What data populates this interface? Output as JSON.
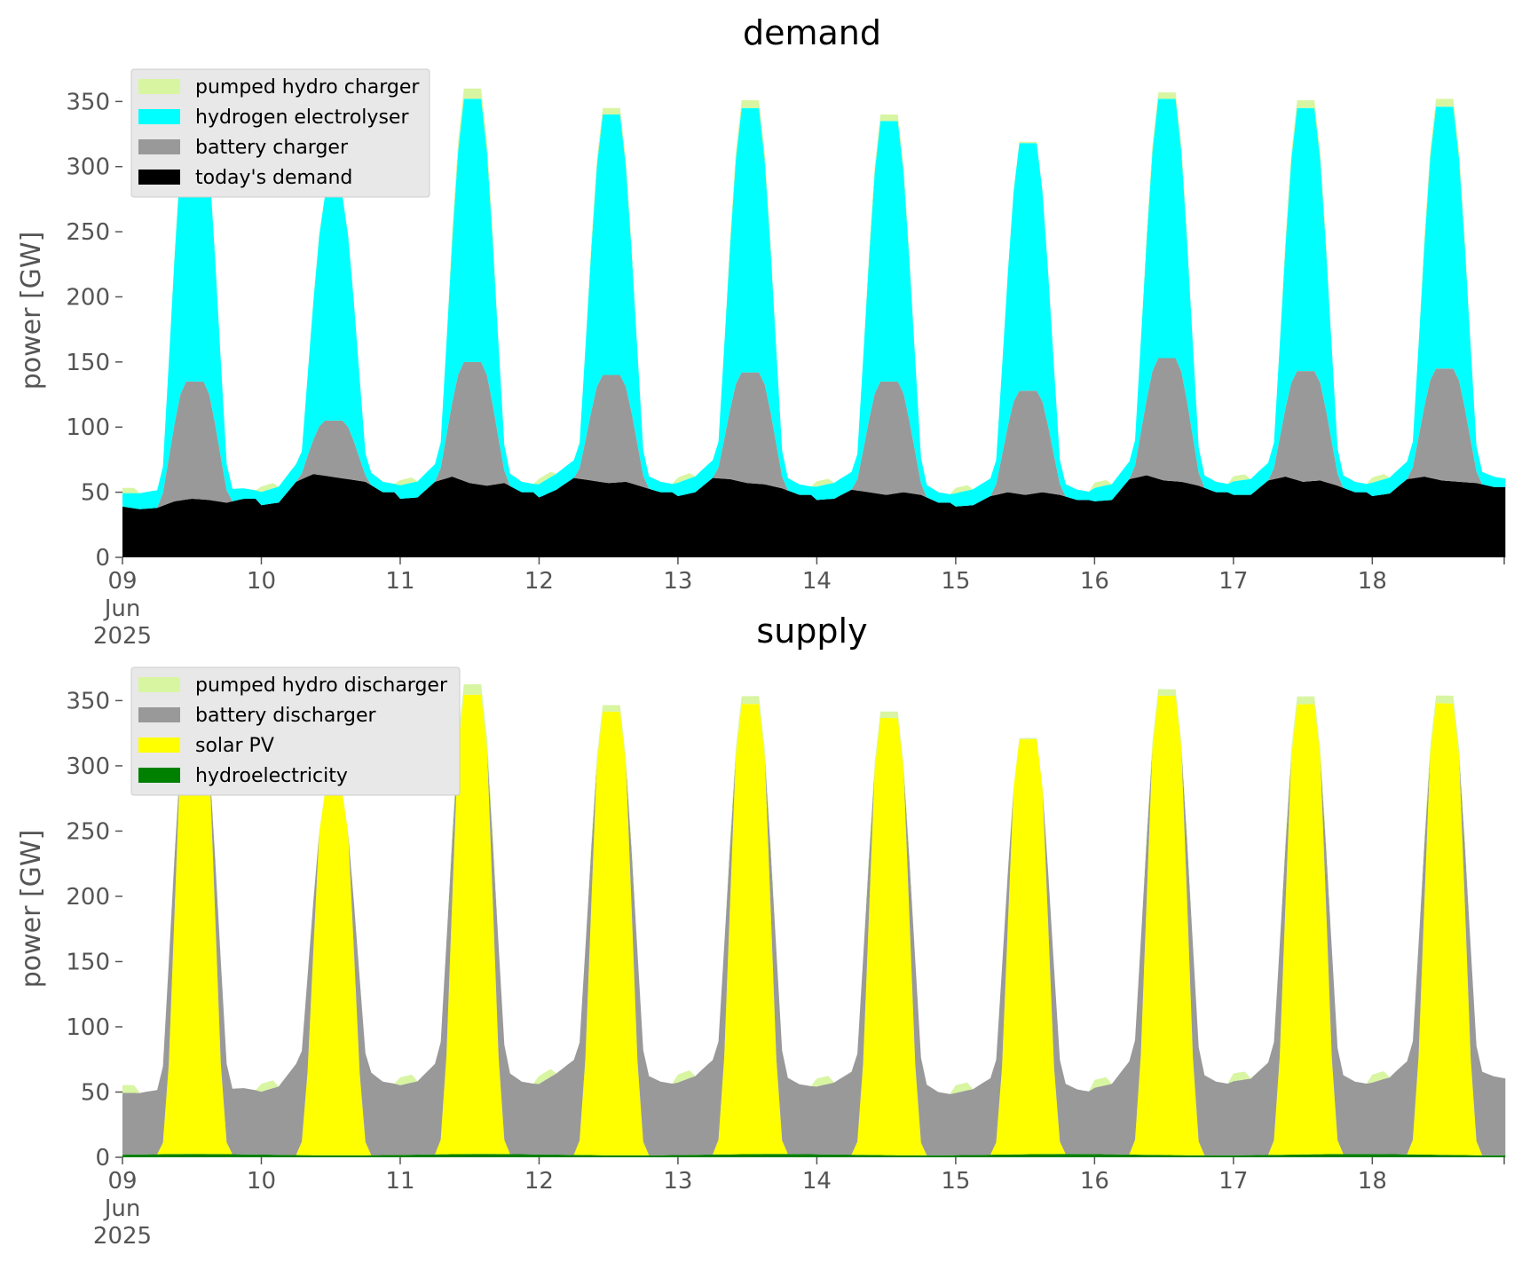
{
  "chart_data": [
    {
      "type": "area",
      "title": "demand",
      "ylabel": "power [GW]",
      "ylim": [
        0,
        370
      ],
      "yticks": [
        "0",
        "50",
        "100",
        "150",
        "200",
        "250",
        "300",
        "350"
      ],
      "xlim": [
        0,
        9.95
      ],
      "xticks": [
        {
          "v": 0,
          "lines": [
            "09",
            "Jun",
            "2025"
          ]
        },
        {
          "v": 1,
          "lines": [
            "10"
          ]
        },
        {
          "v": 2,
          "lines": [
            "11"
          ]
        },
        {
          "v": 3,
          "lines": [
            "12"
          ]
        },
        {
          "v": 4,
          "lines": [
            "13"
          ]
        },
        {
          "v": 5,
          "lines": [
            "14"
          ]
        },
        {
          "v": 6,
          "lines": [
            "15"
          ]
        },
        {
          "v": 7,
          "lines": [
            "16"
          ]
        },
        {
          "v": 8,
          "lines": [
            "17"
          ]
        },
        {
          "v": 9,
          "lines": [
            "18"
          ]
        }
      ],
      "x_note": "x in days starting 2025-06-09 00:00",
      "legend_position": "upper-left",
      "days": [
        {
          "base": [
            39,
            37,
            38,
            43,
            45,
            44,
            42,
            45
          ],
          "peakB": 135,
          "peakH": 343,
          "phc": 2,
          "hscale": 1.0
        },
        {
          "base": [
            40,
            42,
            58,
            64,
            62,
            60,
            58,
            50
          ],
          "peakB": 105,
          "peakH": 278,
          "phc": 1,
          "hscale": 0.83
        },
        {
          "base": [
            45,
            46,
            58,
            62,
            57,
            55,
            57,
            50
          ],
          "peakB": 150,
          "peakH": 352,
          "phc": 8,
          "hscale": 1.0
        },
        {
          "base": [
            46,
            52,
            61,
            59,
            57,
            58,
            54,
            50
          ],
          "peakB": 140,
          "peakH": 340,
          "phc": 5,
          "hscale": 1.0
        },
        {
          "base": [
            47,
            50,
            61,
            60,
            57,
            56,
            53,
            48
          ],
          "peakB": 142,
          "peakH": 345,
          "phc": 6,
          "hscale": 1.0
        },
        {
          "base": [
            44,
            45,
            52,
            50,
            48,
            50,
            48,
            42
          ],
          "peakB": 135,
          "peakH": 335,
          "phc": 5,
          "hscale": 1.0
        },
        {
          "base": [
            39,
            40,
            47,
            50,
            48,
            50,
            48,
            44
          ],
          "peakB": 128,
          "peakH": 318,
          "phc": 1,
          "hscale": 0.9
        },
        {
          "base": [
            43,
            44,
            60,
            63,
            59,
            58,
            55,
            50
          ],
          "peakB": 153,
          "peakH": 352,
          "phc": 5,
          "hscale": 1.0
        },
        {
          "base": [
            48,
            48,
            59,
            62,
            58,
            59,
            55,
            50
          ],
          "peakB": 143,
          "peakH": 345,
          "phc": 6,
          "hscale": 1.0
        },
        {
          "base": [
            47,
            49,
            60,
            62,
            59,
            58,
            57,
            54
          ],
          "peakB": 145,
          "peakH": 346,
          "phc": 6,
          "hscale": 1.0
        }
      ],
      "series": [
        {
          "name": "pumped hydro charger",
          "color": "#d8f5a2"
        },
        {
          "name": "hydrogen electrolyser",
          "color": "#00ffff"
        },
        {
          "name": "battery charger",
          "color": "#999999"
        },
        {
          "name": "today's demand",
          "color": "#000000"
        }
      ]
    },
    {
      "type": "area",
      "title": "supply",
      "ylabel": "power [GW]",
      "ylim": [
        0,
        370
      ],
      "yticks": [
        "0",
        "50",
        "100",
        "150",
        "200",
        "250",
        "300",
        "350"
      ],
      "xlim": [
        0,
        9.95
      ],
      "xticks": [
        {
          "v": 0,
          "lines": [
            "09",
            "Jun",
            "2025"
          ]
        },
        {
          "v": 1,
          "lines": [
            "10"
          ]
        },
        {
          "v": 2,
          "lines": [
            "11"
          ]
        },
        {
          "v": 3,
          "lines": [
            "12"
          ]
        },
        {
          "v": 4,
          "lines": [
            "13"
          ]
        },
        {
          "v": 5,
          "lines": [
            "14"
          ]
        },
        {
          "v": 6,
          "lines": [
            "15"
          ]
        },
        {
          "v": 7,
          "lines": [
            "16"
          ]
        },
        {
          "v": 8,
          "lines": [
            "17"
          ]
        },
        {
          "v": 9,
          "lines": [
            "18"
          ]
        }
      ],
      "legend_position": "upper-left",
      "series": [
        {
          "name": "pumped hydro discharger",
          "color": "#d8f5a2"
        },
        {
          "name": "battery discharger",
          "color": "#999999"
        },
        {
          "name": "solar PV",
          "color": "#ffff00"
        },
        {
          "name": "hydroelectricity",
          "color": "#008000"
        }
      ]
    }
  ]
}
